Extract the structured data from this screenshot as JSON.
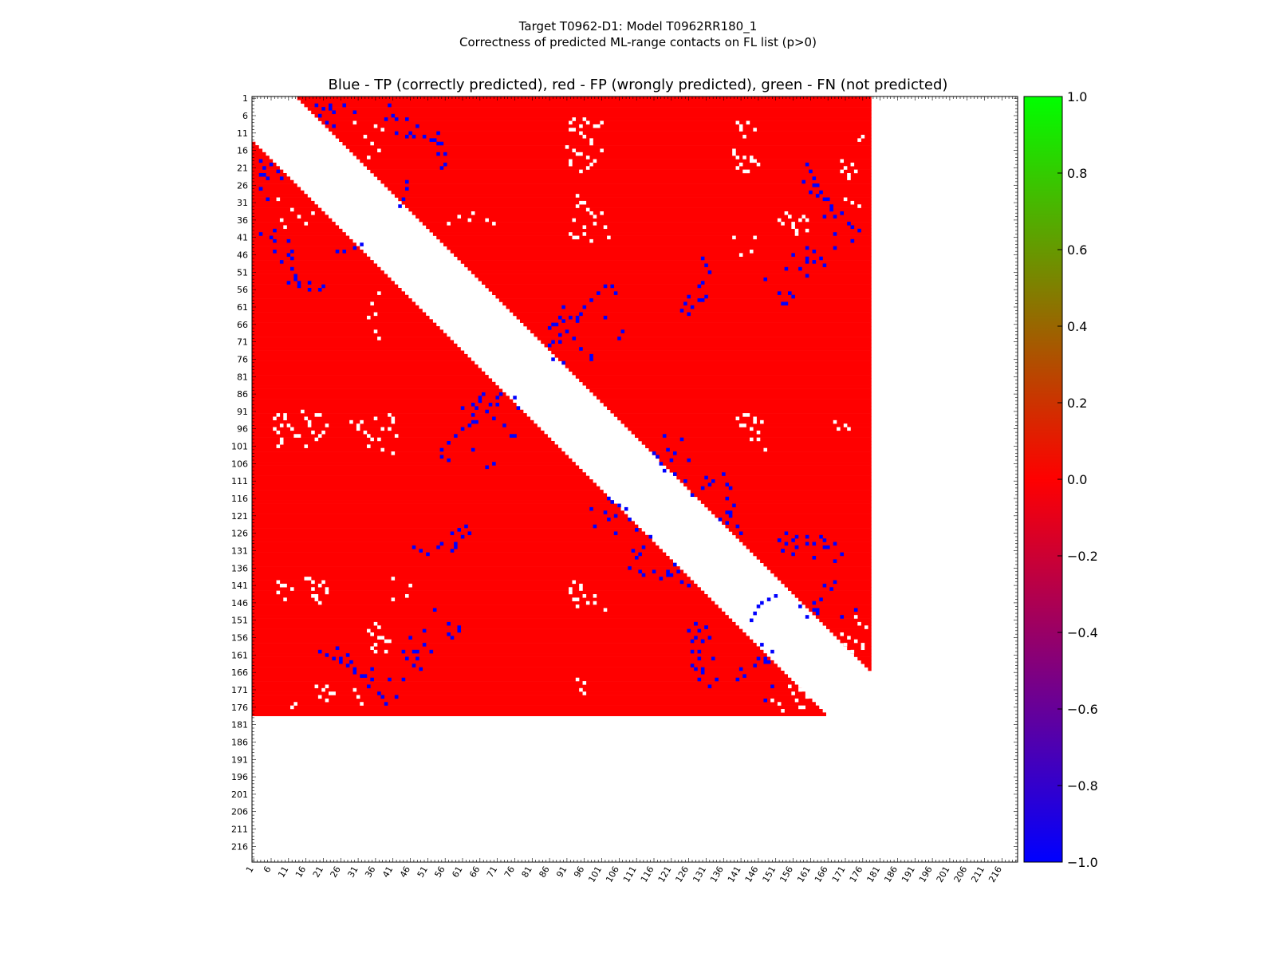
{
  "figure": {
    "title_line1": "Target T0962-D1: Model T0962RR180_1",
    "title_line2": "Correctness of predicted ML-range contacts on FL list (p>0)"
  },
  "chart_data": {
    "type": "heatmap",
    "title": "Blue - TP (correctly predicted), red - FP (wrongly predicted), green - FN (not predicted)",
    "xlabel": "",
    "ylabel": "",
    "n_residues": 220,
    "sequence_length": 178,
    "tick_labels": [
      "1",
      "6",
      "11",
      "16",
      "21",
      "26",
      "31",
      "36",
      "41",
      "46",
      "51",
      "56",
      "61",
      "66",
      "71",
      "76",
      "81",
      "86",
      "91",
      "96",
      "101",
      "106",
      "111",
      "116",
      "121",
      "126",
      "131",
      "136",
      "141",
      "146",
      "151",
      "156",
      "161",
      "166",
      "171",
      "176",
      "181",
      "186",
      "191",
      "196",
      "201",
      "206",
      "211",
      "216"
    ],
    "value_range": [
      -1.0,
      1.0
    ],
    "legend_scale": {
      "colors": [
        "#0000ff",
        "#ff0000",
        "#00ff00"
      ],
      "ticks": [
        "1.0",
        "0.8",
        "0.6",
        "0.4",
        "0.2",
        "0.0",
        "−0.2",
        "−0.4",
        "−0.6",
        "−0.8",
        "−1.0"
      ]
    },
    "categories": [
      {
        "name": "TP",
        "value": -1.0,
        "color": "#0000ff"
      },
      {
        "name": "FP",
        "value": 0.0,
        "color": "#ff0000"
      },
      {
        "name": "FN",
        "value": 1.0,
        "color": "#00ff00"
      }
    ],
    "excluded_band": {
      "min_offset": 13
    },
    "tp_contacts": [
      [
        3,
        19
      ],
      [
        3,
        23
      ],
      [
        3,
        27
      ],
      [
        4,
        21
      ],
      [
        5,
        24
      ],
      [
        7,
        39
      ],
      [
        7,
        42
      ],
      [
        11,
        42
      ],
      [
        12,
        45
      ],
      [
        13,
        53
      ],
      [
        14,
        54
      ],
      [
        17,
        54
      ],
      [
        20,
        56
      ],
      [
        27,
        45
      ],
      [
        25,
        159
      ],
      [
        26,
        162
      ],
      [
        28,
        161
      ],
      [
        29,
        163
      ],
      [
        30,
        165
      ],
      [
        33,
        167
      ],
      [
        34,
        170
      ],
      [
        35,
        168
      ],
      [
        38,
        173
      ],
      [
        42,
        173
      ],
      [
        44,
        168
      ],
      [
        44,
        160
      ],
      [
        46,
        156
      ],
      [
        47,
        160
      ],
      [
        48,
        160
      ],
      [
        48,
        162
      ],
      [
        50,
        154
      ],
      [
        53,
        148
      ],
      [
        57,
        152
      ],
      [
        60,
        153
      ],
      [
        60,
        154
      ],
      [
        59,
        129
      ],
      [
        59,
        130
      ],
      [
        58,
        131
      ],
      [
        61,
        127
      ],
      [
        63,
        126
      ],
      [
        64,
        92
      ],
      [
        64,
        94
      ],
      [
        65,
        90
      ],
      [
        66,
        87
      ],
      [
        67,
        86
      ],
      [
        68,
        91
      ],
      [
        69,
        89
      ],
      [
        71,
        89
      ],
      [
        72,
        86
      ],
      [
        73,
        95
      ],
      [
        75,
        98
      ],
      [
        76,
        98
      ],
      [
        77,
        90
      ],
      [
        76,
        87
      ],
      [
        88,
        66
      ],
      [
        87,
        71
      ],
      [
        89,
        64
      ],
      [
        90,
        61
      ],
      [
        93,
        70
      ],
      [
        94,
        65
      ],
      [
        95,
        63
      ],
      [
        96,
        61
      ],
      [
        98,
        59
      ],
      [
        100,
        57
      ],
      [
        102,
        55
      ],
      [
        102,
        64
      ],
      [
        107,
        68
      ],
      [
        106,
        70
      ],
      [
        105,
        57
      ],
      [
        104,
        55
      ],
      [
        103,
        116
      ],
      [
        104,
        117
      ],
      [
        106,
        118
      ],
      [
        108,
        119
      ],
      [
        109,
        122
      ],
      [
        110,
        131
      ],
      [
        111,
        133
      ],
      [
        112,
        132
      ],
      [
        113,
        130
      ],
      [
        120,
        137
      ],
      [
        121,
        138
      ],
      [
        122,
        135
      ],
      [
        123,
        137
      ],
      [
        119,
        98
      ],
      [
        120,
        102
      ],
      [
        121,
        105
      ],
      [
        122,
        103
      ],
      [
        124,
        99
      ],
      [
        125,
        111
      ],
      [
        126,
        105
      ],
      [
        127,
        115
      ],
      [
        126,
        154
      ],
      [
        127,
        157
      ],
      [
        128,
        152
      ],
      [
        130,
        157
      ],
      [
        131,
        153
      ],
      [
        129,
        160
      ],
      [
        130,
        165
      ],
      [
        132,
        170
      ],
      [
        133,
        162
      ],
      [
        134,
        168
      ],
      [
        136,
        109
      ],
      [
        137,
        112
      ],
      [
        138,
        113
      ],
      [
        137,
        116
      ],
      [
        138,
        120
      ],
      [
        139,
        118
      ],
      [
        140,
        124
      ],
      [
        141,
        126
      ],
      [
        144,
        151
      ],
      [
        145,
        149
      ],
      [
        146,
        147
      ],
      [
        147,
        158
      ],
      [
        148,
        162
      ],
      [
        149,
        163
      ],
      [
        150,
        160
      ],
      [
        152,
        128
      ],
      [
        153,
        131
      ],
      [
        154,
        129
      ],
      [
        156,
        128
      ],
      [
        157,
        130
      ],
      [
        156,
        132
      ],
      [
        160,
        127
      ],
      [
        162,
        129
      ],
      [
        164,
        127
      ],
      [
        165,
        128
      ],
      [
        166,
        130
      ],
      [
        168,
        129
      ],
      [
        167,
        142
      ],
      [
        165,
        141
      ],
      [
        164,
        145
      ],
      [
        163,
        148
      ],
      [
        162,
        146
      ],
      [
        168,
        140
      ],
      [
        170,
        150
      ],
      [
        174,
        148
      ],
      [
        130,
        47
      ],
      [
        131,
        49
      ],
      [
        132,
        51
      ],
      [
        130,
        54
      ],
      [
        129,
        55
      ],
      [
        126,
        58
      ],
      [
        125,
        60
      ],
      [
        124,
        62
      ],
      [
        160,
        20
      ],
      [
        161,
        22
      ],
      [
        162,
        24
      ],
      [
        163,
        26
      ],
      [
        164,
        28
      ],
      [
        166,
        30
      ],
      [
        167,
        32
      ],
      [
        165,
        35
      ],
      [
        168,
        40
      ],
      [
        170,
        34
      ],
      [
        172,
        37
      ],
      [
        173,
        42
      ],
      [
        175,
        39
      ],
      [
        158,
        50
      ],
      [
        160,
        52
      ],
      [
        162,
        45
      ],
      [
        164,
        47
      ],
      [
        165,
        49
      ],
      [
        155,
        57
      ],
      [
        156,
        58
      ],
      [
        20,
        6
      ],
      [
        22,
        8
      ],
      [
        23,
        4
      ],
      [
        24,
        9
      ],
      [
        27,
        3
      ],
      [
        30,
        5
      ],
      [
        40,
        3
      ],
      [
        41,
        6
      ],
      [
        45,
        7
      ],
      [
        46,
        11
      ],
      [
        47,
        12
      ],
      [
        48,
        9
      ],
      [
        50,
        12
      ],
      [
        52,
        13
      ],
      [
        54,
        11
      ],
      [
        55,
        14
      ],
      [
        56,
        17
      ],
      [
        55,
        21
      ],
      [
        45,
        25
      ],
      [
        44,
        30
      ],
      [
        43,
        32
      ]
    ],
    "fn_contacts": [
      [
        7,
        93
      ],
      [
        7,
        96
      ],
      [
        8,
        97
      ],
      [
        9,
        99
      ],
      [
        10,
        92
      ],
      [
        8,
        101
      ],
      [
        11,
        95
      ],
      [
        13,
        98
      ],
      [
        15,
        91
      ],
      [
        16,
        93
      ],
      [
        17,
        95
      ],
      [
        18,
        97
      ],
      [
        19,
        92
      ],
      [
        20,
        98
      ],
      [
        8,
        143
      ],
      [
        9,
        141
      ],
      [
        10,
        145
      ],
      [
        17,
        139
      ],
      [
        18,
        142
      ],
      [
        19,
        144
      ],
      [
        20,
        146
      ],
      [
        21,
        140
      ],
      [
        22,
        143
      ],
      [
        31,
        95
      ],
      [
        32,
        94
      ],
      [
        34,
        98
      ],
      [
        36,
        93
      ],
      [
        37,
        99
      ],
      [
        38,
        96
      ],
      [
        40,
        92
      ],
      [
        41,
        94
      ],
      [
        42,
        98
      ],
      [
        35,
        155
      ],
      [
        36,
        158
      ],
      [
        37,
        153
      ],
      [
        38,
        156
      ],
      [
        39,
        160
      ],
      [
        40,
        157
      ],
      [
        30,
        171
      ],
      [
        31,
        173
      ],
      [
        32,
        175
      ],
      [
        22,
        170
      ],
      [
        24,
        172
      ],
      [
        9,
        36
      ],
      [
        10,
        38
      ],
      [
        12,
        33
      ],
      [
        14,
        35
      ],
      [
        16,
        37
      ],
      [
        18,
        34
      ],
      [
        8,
        30
      ],
      [
        35,
        60
      ],
      [
        36,
        63
      ],
      [
        34,
        64
      ],
      [
        41,
        145
      ],
      [
        45,
        144
      ],
      [
        57,
        37
      ],
      [
        68,
        36
      ],
      [
        70,
        37
      ],
      [
        92,
        8
      ],
      [
        93,
        10
      ],
      [
        95,
        9
      ],
      [
        96,
        12
      ],
      [
        98,
        14
      ],
      [
        100,
        9
      ],
      [
        101,
        16
      ],
      [
        99,
        19
      ],
      [
        94,
        17
      ],
      [
        92,
        20
      ],
      [
        95,
        22
      ],
      [
        97,
        21
      ],
      [
        94,
        29
      ],
      [
        96,
        31
      ],
      [
        97,
        33
      ],
      [
        99,
        35
      ],
      [
        101,
        34
      ],
      [
        102,
        38
      ],
      [
        103,
        41
      ],
      [
        93,
        41
      ],
      [
        96,
        40
      ],
      [
        92,
        143
      ],
      [
        93,
        145
      ],
      [
        94,
        147
      ],
      [
        95,
        142
      ],
      [
        97,
        146
      ],
      [
        99,
        144
      ],
      [
        102,
        148
      ],
      [
        95,
        171
      ],
      [
        96,
        172
      ],
      [
        140,
        8
      ],
      [
        141,
        10
      ],
      [
        142,
        12
      ],
      [
        139,
        16
      ],
      [
        140,
        18
      ],
      [
        141,
        20
      ],
      [
        142,
        22
      ],
      [
        144,
        18
      ],
      [
        145,
        19
      ],
      [
        139,
        41
      ],
      [
        141,
        46
      ],
      [
        140,
        93
      ],
      [
        141,
        95
      ],
      [
        142,
        92
      ],
      [
        144,
        96
      ],
      [
        145,
        94
      ],
      [
        146,
        99
      ],
      [
        155,
        35
      ],
      [
        156,
        37
      ],
      [
        157,
        39
      ],
      [
        152,
        36
      ],
      [
        154,
        34
      ],
      [
        159,
        35
      ],
      [
        160,
        36
      ],
      [
        170,
        19
      ],
      [
        171,
        21
      ],
      [
        172,
        23
      ],
      [
        173,
        20
      ],
      [
        174,
        22
      ],
      [
        175,
        13
      ],
      [
        176,
        12
      ],
      [
        174,
        150
      ],
      [
        175,
        152
      ],
      [
        176,
        158
      ],
      [
        177,
        153
      ],
      [
        156,
        172
      ],
      [
        155,
        170
      ],
      [
        157,
        174
      ],
      [
        158,
        171
      ],
      [
        159,
        176
      ],
      [
        160,
        173
      ],
      [
        168,
        94
      ],
      [
        169,
        96
      ]
    ]
  }
}
